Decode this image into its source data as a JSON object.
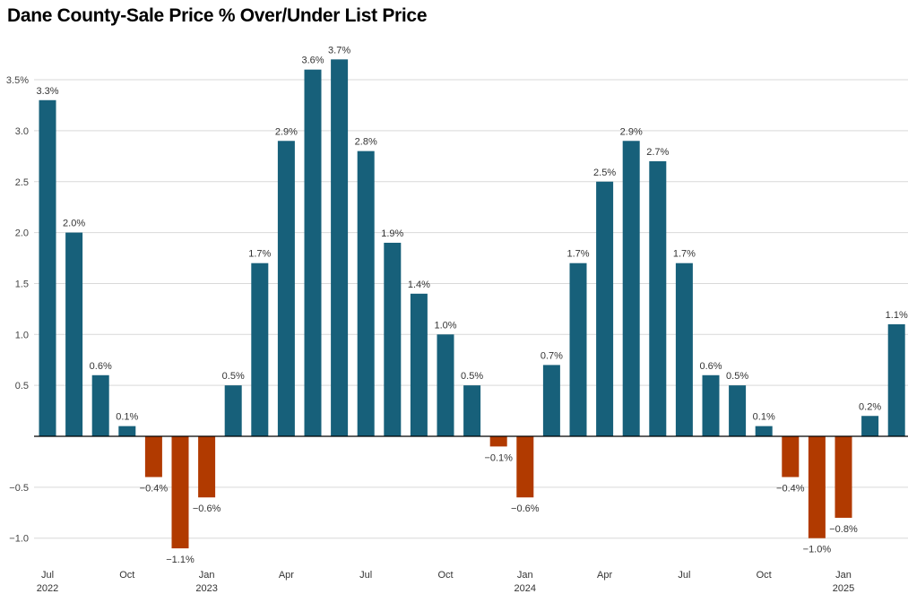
{
  "chart_data": {
    "type": "bar",
    "title": "Dane County-Sale Price % Over/Under List Price",
    "xlabel": "",
    "ylabel": "",
    "ylim": [
      -1.15,
      3.6
    ],
    "yticks": [
      -1.0,
      -0.5,
      0.5,
      1.0,
      1.5,
      2.0,
      2.5,
      3.0,
      3.5
    ],
    "ytick_labels": [
      "−1.0",
      "−0.5",
      "0.5",
      "1.0",
      "1.5",
      "2.0",
      "2.5",
      "3.0",
      "3.5%"
    ],
    "grid": true,
    "legend": "none",
    "colors": {
      "positive": "#17607a",
      "negative": "#b13a00"
    },
    "categories": [
      "Jul 2022",
      "Aug 2022",
      "Sep 2022",
      "Oct 2022",
      "Nov 2022",
      "Dec 2022",
      "Jan 2023",
      "Feb 2023",
      "Mar 2023",
      "Apr 2023",
      "May 2023",
      "Jun 2023",
      "Jul 2023",
      "Aug 2023",
      "Sep 2023",
      "Oct 2023",
      "Nov 2023",
      "Dec 2023",
      "Jan 2024",
      "Feb 2024",
      "Mar 2024",
      "Apr 2024",
      "May 2024",
      "Jun 2024",
      "Jul 2024",
      "Aug 2024",
      "Sep 2024",
      "Oct 2024",
      "Nov 2024",
      "Dec 2024",
      "Jan 2025",
      "Feb 2025",
      "Mar 2025"
    ],
    "values": [
      3.3,
      2.0,
      0.6,
      0.1,
      -0.4,
      -1.1,
      -0.6,
      0.5,
      1.7,
      2.9,
      3.6,
      3.7,
      2.8,
      1.9,
      1.4,
      1.0,
      0.5,
      -0.1,
      -0.6,
      0.7,
      1.7,
      2.5,
      2.9,
      2.7,
      1.7,
      0.6,
      0.5,
      0.1,
      -0.4,
      -1.0,
      -0.8,
      0.2,
      1.1
    ],
    "data_labels": [
      "3.3%",
      "2.0%",
      "0.6%",
      "0.1%",
      "−0.4%",
      "−1.1%",
      "−0.6%",
      "0.5%",
      "1.7%",
      "2.9%",
      "3.6%",
      "3.7%",
      "2.8%",
      "1.9%",
      "1.4%",
      "1.0%",
      "0.5%",
      "−0.1%",
      "−0.6%",
      "0.7%",
      "1.7%",
      "2.5%",
      "2.9%",
      "2.7%",
      "1.7%",
      "0.6%",
      "0.5%",
      "0.1%",
      "−0.4%",
      "−1.0%",
      "−0.8%",
      "0.2%",
      "1.1%"
    ],
    "xticks": [
      {
        "index": 0,
        "month": "Jul",
        "year": "2022"
      },
      {
        "index": 3,
        "month": "Oct",
        "year": ""
      },
      {
        "index": 6,
        "month": "Jan",
        "year": "2023"
      },
      {
        "index": 9,
        "month": "Apr",
        "year": ""
      },
      {
        "index": 12,
        "month": "Jul",
        "year": ""
      },
      {
        "index": 15,
        "month": "Oct",
        "year": ""
      },
      {
        "index": 18,
        "month": "Jan",
        "year": "2024"
      },
      {
        "index": 21,
        "month": "Apr",
        "year": ""
      },
      {
        "index": 24,
        "month": "Jul",
        "year": ""
      },
      {
        "index": 27,
        "month": "Oct",
        "year": ""
      },
      {
        "index": 30,
        "month": "Jan",
        "year": "2025"
      }
    ]
  }
}
